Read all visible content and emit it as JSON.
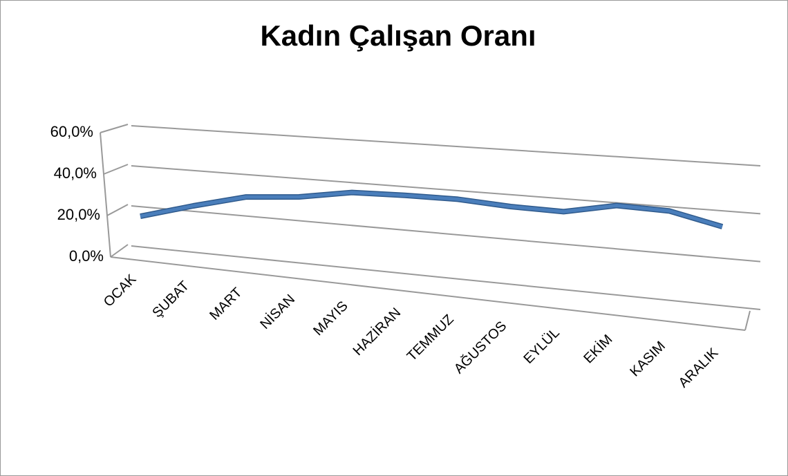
{
  "chart_data": {
    "type": "line",
    "title": "Kadın Çalışan Oranı",
    "categories": [
      "OCAK",
      "ŞUBAT",
      "MART",
      "NİSAN",
      "MAYIS",
      "HAZİRAN",
      "TEMMUZ",
      "AĞUSTOS",
      "EYLÜL",
      "EKİM",
      "KASIM",
      "ARALIK"
    ],
    "series": [
      {
        "name": "Kadın Çalışan Oranı",
        "color": "#4a7ebb",
        "values": [
          15.2,
          22.7,
          29.2,
          31.3,
          35.4,
          36,
          36.1,
          34.7,
          34.3,
          38.8,
          38.2,
          33.3
        ]
      }
    ],
    "ylim": [
      0,
      60
    ],
    "yticks": [
      {
        "value": 0,
        "label": "0,0%"
      },
      {
        "value": 20,
        "label": "20,0%"
      },
      {
        "value": 40,
        "label": "40,0%"
      },
      {
        "value": 60,
        "label": "60,0%"
      }
    ],
    "grid": true
  }
}
